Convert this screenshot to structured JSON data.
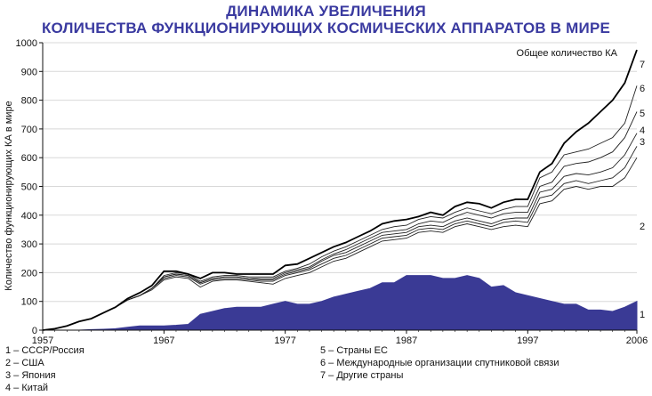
{
  "chart_data": {
    "type": "line",
    "title": "ДИНАМИКА УВЕЛИЧЕНИЯ",
    "subtitle": "КОЛИЧЕСТВА ФУНКЦИОНИРУЮЩИХ КОСМИЧЕСКИХ АППАРАТОВ В МИРЕ",
    "ylabel": "Количество функционирующих КА в мире",
    "xlabel": "",
    "xlim": [
      1957,
      2006
    ],
    "ylim": [
      0,
      1000
    ],
    "x_ticks": [
      "1957",
      "1967",
      "1977",
      "1987",
      "1997",
      "2006"
    ],
    "y_ticks": [
      "0",
      "100",
      "200",
      "300",
      "400",
      "500",
      "600",
      "700",
      "800",
      "900",
      "1000"
    ],
    "total_label": "Общее количество КА",
    "x": [
      1957,
      1958,
      1959,
      1960,
      1961,
      1962,
      1963,
      1964,
      1965,
      1966,
      1967,
      1968,
      1969,
      1970,
      1971,
      1972,
      1973,
      1974,
      1975,
      1976,
      1977,
      1978,
      1979,
      1980,
      1981,
      1982,
      1983,
      1984,
      1985,
      1986,
      1987,
      1988,
      1989,
      1990,
      1991,
      1992,
      1993,
      1994,
      1995,
      1996,
      1997,
      1998,
      1999,
      2000,
      2001,
      2002,
      2003,
      2004,
      2005,
      2006
    ],
    "series": [
      {
        "name": "1",
        "values": [
          0,
          0,
          0,
          0,
          2,
          3,
          5,
          10,
          15,
          15,
          15,
          17,
          20,
          55,
          65,
          75,
          80,
          80,
          80,
          90,
          100,
          90,
          90,
          100,
          115,
          125,
          135,
          145,
          165,
          165,
          190,
          190,
          190,
          180,
          180,
          190,
          180,
          150,
          155,
          130,
          120,
          110,
          100,
          90,
          90,
          70,
          70,
          65,
          80,
          100
        ]
      },
      {
        "name": "2",
        "values": [
          0,
          5,
          15,
          30,
          40,
          60,
          80,
          105,
          120,
          140,
          175,
          185,
          180,
          150,
          170,
          175,
          175,
          170,
          165,
          160,
          180,
          190,
          200,
          220,
          240,
          250,
          270,
          290,
          310,
          315,
          320,
          340,
          345,
          340,
          360,
          370,
          360,
          350,
          360,
          365,
          360,
          440,
          450,
          490,
          500,
          490,
          500,
          500,
          530,
          600
        ]
      },
      {
        "name": "3",
        "values": [
          0,
          5,
          15,
          30,
          40,
          60,
          80,
          105,
          120,
          145,
          180,
          190,
          185,
          160,
          175,
          180,
          180,
          175,
          170,
          170,
          190,
          200,
          210,
          230,
          250,
          260,
          280,
          300,
          320,
          325,
          330,
          350,
          355,
          350,
          370,
          380,
          370,
          360,
          375,
          380,
          375,
          460,
          470,
          510,
          520,
          510,
          520,
          530,
          565,
          640
        ]
      },
      {
        "name": "4",
        "values": [
          0,
          5,
          15,
          30,
          40,
          60,
          80,
          105,
          120,
          145,
          185,
          195,
          190,
          165,
          180,
          185,
          185,
          180,
          175,
          175,
          195,
          205,
          215,
          240,
          260,
          270,
          290,
          310,
          330,
          335,
          340,
          360,
          365,
          360,
          380,
          390,
          380,
          370,
          385,
          390,
          390,
          480,
          490,
          535,
          545,
          540,
          550,
          565,
          610,
          685
        ]
      },
      {
        "name": "5",
        "values": [
          0,
          5,
          15,
          30,
          40,
          60,
          80,
          105,
          120,
          145,
          185,
          195,
          190,
          165,
          180,
          185,
          185,
          180,
          180,
          180,
          200,
          210,
          220,
          245,
          265,
          280,
          300,
          320,
          340,
          345,
          350,
          370,
          380,
          375,
          395,
          410,
          400,
          390,
          405,
          410,
          410,
          500,
          515,
          570,
          580,
          585,
          600,
          620,
          670,
          760
        ]
      },
      {
        "name": "6",
        "values": [
          0,
          5,
          15,
          30,
          40,
          60,
          80,
          105,
          120,
          145,
          190,
          200,
          195,
          170,
          185,
          190,
          190,
          185,
          185,
          185,
          205,
          215,
          230,
          255,
          275,
          290,
          310,
          330,
          350,
          360,
          365,
          385,
          395,
          390,
          410,
          425,
          415,
          405,
          420,
          430,
          430,
          530,
          550,
          610,
          620,
          630,
          650,
          670,
          720,
          850
        ]
      },
      {
        "name": "7",
        "values": [
          0,
          5,
          15,
          30,
          40,
          60,
          80,
          110,
          130,
          155,
          205,
          205,
          195,
          180,
          200,
          200,
          195,
          195,
          195,
          195,
          225,
          230,
          250,
          270,
          290,
          305,
          325,
          345,
          370,
          380,
          385,
          395,
          410,
          400,
          430,
          445,
          440,
          425,
          445,
          455,
          455,
          550,
          580,
          650,
          690,
          720,
          760,
          800,
          860,
          975
        ]
      }
    ],
    "colors": {
      "area": "#3a3a95",
      "lines": "#222222",
      "total": "#000000"
    },
    "series_labels": [
      "1",
      "2",
      "3",
      "4",
      "5",
      "6",
      "7"
    ],
    "legend": [
      "1 – СССР/Россия",
      "2 – США",
      "3 – Япония",
      "4 – Китай",
      "5 – Страны ЕС",
      "6 – Международные организации спутниковой связи",
      "7 – Другие страны"
    ]
  }
}
